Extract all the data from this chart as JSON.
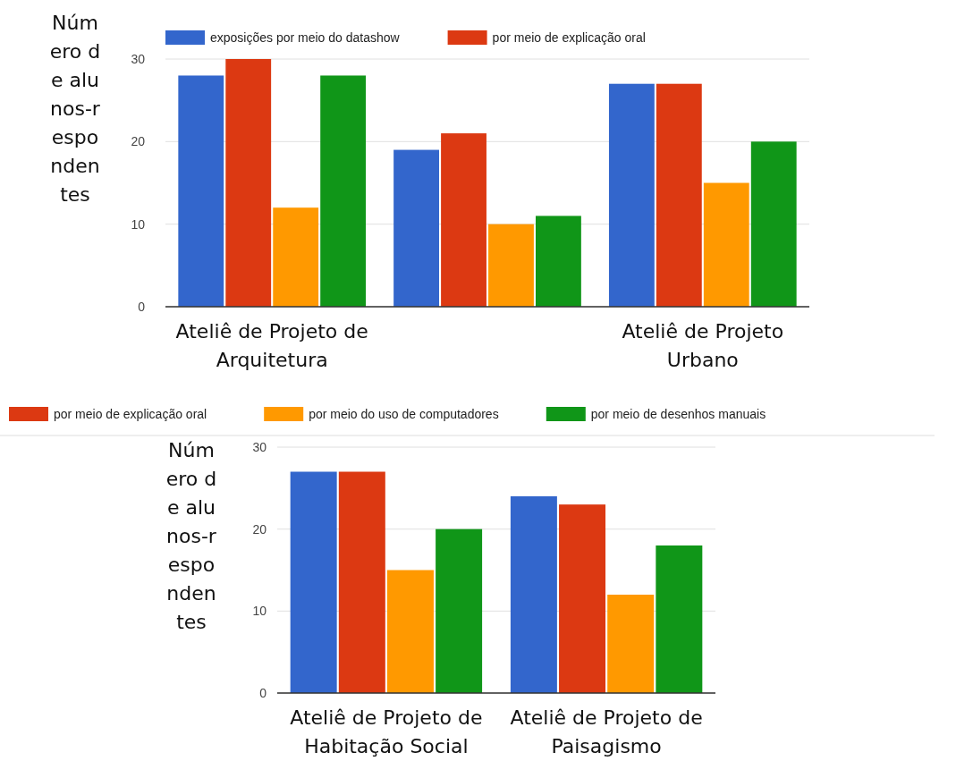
{
  "chart_data": [
    {
      "type": "bar",
      "ylabel": "Número de alunos-respondentes",
      "categories": [
        "Ateliê de Projeto de Arquitetura",
        null,
        "Ateliê de Projeto Urbano"
      ],
      "series": [
        {
          "name": "exposições por meio do datashow",
          "color": "#3366cc",
          "values": [
            28,
            19,
            27
          ]
        },
        {
          "name": "por meio de explicação oral",
          "color": "#dc3912",
          "values": [
            30,
            21,
            27
          ]
        },
        {
          "color": "#ff9900",
          "values": [
            12,
            10,
            15
          ]
        },
        {
          "color": "#109618",
          "values": [
            28,
            11,
            20
          ]
        }
      ],
      "ylim": [
        0,
        30
      ],
      "yticks": [
        0,
        10,
        20,
        30
      ],
      "grid": "y",
      "legend": "top"
    },
    {
      "type": "bar",
      "ylabel": "Número de alunos-respondentes",
      "categories": [
        "Ateliê de Projeto de Habitação Social",
        "Ateliê de Projeto de Paisagismo"
      ],
      "series": [
        {
          "color": "#3366cc",
          "values": [
            27,
            24
          ]
        },
        {
          "name": "por meio de explicação oral",
          "color": "#dc3912",
          "values": [
            27,
            23
          ]
        },
        {
          "name": "por meio do uso de computadores",
          "color": "#ff9900",
          "values": [
            15,
            12
          ]
        },
        {
          "name": "por meio de desenhos manuais",
          "color": "#109618",
          "values": [
            20,
            18
          ]
        }
      ],
      "ylim": [
        0,
        30
      ],
      "yticks": [
        0,
        10,
        20,
        30
      ],
      "grid": "y",
      "legend": "top"
    }
  ]
}
